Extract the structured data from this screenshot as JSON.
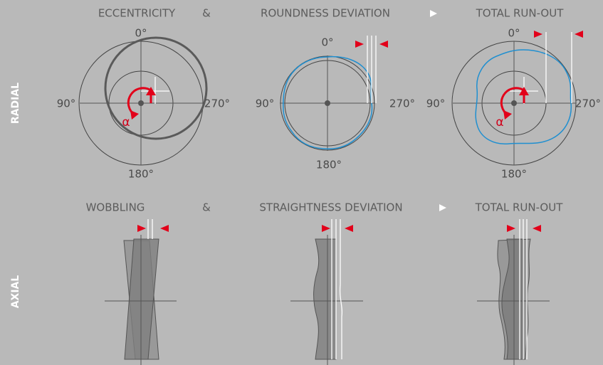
{
  "rows": [
    {
      "label": "RADIAL",
      "headings": [
        "ECCENTRICITY",
        "&",
        "ROUNDNESS DEVIATION",
        "TOTAL RUN-OUT"
      ],
      "diagrams": [
        {
          "angles": [
            "0°",
            "90°",
            "270°",
            "180°"
          ],
          "alpha": "α"
        },
        {
          "angles": [
            "0°",
            "90°",
            "270°",
            "180°"
          ]
        },
        {
          "angles": [
            "0°",
            "90°",
            "270°",
            "180°"
          ],
          "alpha": "α"
        }
      ]
    },
    {
      "label": "AXIAL",
      "headings": [
        "WOBBLING",
        "&",
        "STRAIGHTNESS DEVIATION",
        "TOTAL RUN-OUT"
      ]
    }
  ]
}
